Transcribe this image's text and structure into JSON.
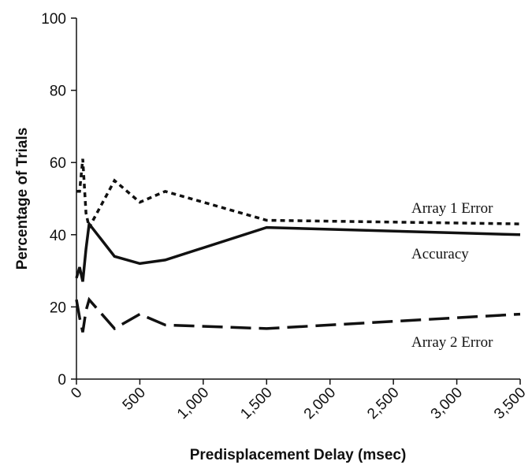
{
  "chart_data": {
    "type": "line",
    "xlabel": "Predisplacement Delay (msec)",
    "ylabel": "Percentage of Trials",
    "xlim": [
      0,
      3500
    ],
    "ylim": [
      0,
      100
    ],
    "x_ticks": [
      0,
      500,
      1000,
      1500,
      2000,
      2500,
      3000,
      3500
    ],
    "x_tick_labels": [
      "0",
      "500",
      "1,000",
      "1,500",
      "2,000",
      "2,500",
      "3,000",
      "3,500"
    ],
    "y_ticks": [
      0,
      20,
      40,
      60,
      80,
      100
    ],
    "y_tick_labels": [
      "0",
      "20",
      "40",
      "60",
      "80",
      "100"
    ],
    "grid": false,
    "legend": "inline labels",
    "series": [
      {
        "name": "Array 1 Error",
        "style": "dotted",
        "color": "#111111",
        "x": [
          0,
          25,
          50,
          75,
          100,
          300,
          500,
          700,
          1500,
          3500
        ],
        "y": [
          52,
          52,
          61,
          46,
          42,
          55,
          49,
          52,
          44,
          43
        ]
      },
      {
        "name": "Accuracy",
        "style": "solid",
        "color": "#111111",
        "x": [
          0,
          25,
          50,
          75,
          100,
          300,
          500,
          700,
          1500,
          3500
        ],
        "y": [
          28,
          31,
          27,
          36,
          43,
          34,
          32,
          33,
          42,
          40
        ]
      },
      {
        "name": "Array 2 Error",
        "style": "dashed",
        "color": "#111111",
        "x": [
          0,
          25,
          50,
          75,
          100,
          300,
          500,
          700,
          1500,
          3500
        ],
        "y": [
          22,
          17,
          13,
          19,
          22,
          14,
          18,
          15,
          14,
          18
        ]
      }
    ]
  }
}
